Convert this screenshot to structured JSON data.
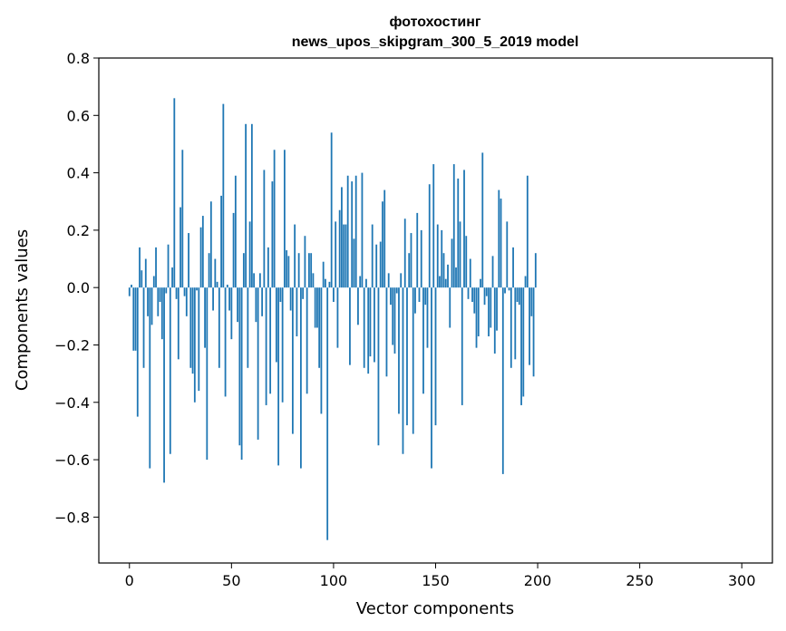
{
  "chart_data": {
    "type": "bar",
    "title_lines": [
      "фотохостинг",
      "news_upos_skipgram_300_5_2019 model"
    ],
    "xlabel": "Vector components",
    "ylabel": "Components values",
    "xlim": [
      -15,
      315
    ],
    "ylim": [
      -0.96,
      0.8
    ],
    "xticks": [
      0,
      50,
      100,
      150,
      200,
      250,
      300
    ],
    "yticks": [
      -0.8,
      -0.6,
      -0.4,
      -0.2,
      0.0,
      0.2,
      0.4,
      0.6,
      0.8
    ],
    "ytick_labels": [
      "−0.8",
      "−0.6",
      "−0.4",
      "−0.2",
      "0.0",
      "0.2",
      "0.4",
      "0.6",
      "0.8"
    ],
    "bar_color": "#1f77b4",
    "grid": false,
    "legend": "none",
    "x_start": 0,
    "values": [
      -0.03,
      0.01,
      -0.22,
      -0.22,
      -0.45,
      0.14,
      0.06,
      -0.28,
      0.1,
      -0.1,
      -0.63,
      -0.13,
      0.04,
      0.14,
      -0.1,
      -0.05,
      -0.18,
      -0.68,
      -0.02,
      0.15,
      -0.58,
      0.07,
      0.66,
      -0.04,
      -0.25,
      0.28,
      0.48,
      -0.03,
      -0.1,
      0.19,
      -0.28,
      -0.3,
      -0.4,
      -0.01,
      -0.36,
      0.21,
      0.25,
      -0.21,
      -0.6,
      0.12,
      0.3,
      -0.08,
      0.1,
      0.02,
      -0.28,
      0.32,
      0.64,
      -0.38,
      0.01,
      -0.08,
      -0.18,
      0.26,
      0.39,
      -0.12,
      -0.55,
      -0.6,
      0.12,
      0.57,
      -0.28,
      0.23,
      0.57,
      0.05,
      -0.12,
      -0.53,
      0.05,
      -0.1,
      0.41,
      -0.41,
      0.14,
      -0.37,
      0.37,
      0.48,
      -0.26,
      -0.62,
      -0.05,
      -0.4,
      0.48,
      0.13,
      0.11,
      -0.08,
      -0.51,
      0.22,
      -0.17,
      0.12,
      -0.63,
      -0.04,
      0.18,
      -0.37,
      0.12,
      0.12,
      0.05,
      -0.14,
      -0.14,
      -0.28,
      -0.44,
      0.09,
      0.03,
      -0.88,
      0.02,
      0.54,
      -0.05,
      0.23,
      -0.21,
      0.27,
      0.35,
      0.22,
      0.22,
      0.39,
      -0.27,
      0.37,
      0.17,
      0.39,
      -0.13,
      0.04,
      0.4,
      -0.28,
      0.03,
      -0.3,
      -0.24,
      0.22,
      -0.26,
      0.15,
      -0.55,
      0.16,
      0.3,
      0.34,
      -0.31,
      0.05,
      -0.06,
      -0.2,
      -0.23,
      -0.02,
      -0.44,
      0.05,
      -0.58,
      0.24,
      -0.48,
      0.12,
      0.19,
      -0.51,
      -0.09,
      0.26,
      -0.05,
      0.2,
      -0.37,
      -0.06,
      -0.21,
      0.36,
      -0.63,
      0.43,
      -0.48,
      0.22,
      0.04,
      0.2,
      0.12,
      0.03,
      0.08,
      -0.14,
      0.17,
      0.43,
      0.07,
      0.38,
      0.23,
      -0.41,
      0.41,
      0.18,
      -0.04,
      0.1,
      -0.05,
      -0.09,
      -0.21,
      -0.17,
      0.03,
      0.47,
      -0.06,
      -0.03,
      -0.17,
      -0.14,
      0.11,
      -0.23,
      -0.15,
      0.34,
      0.31,
      -0.65,
      -0.02,
      0.23,
      -0.01,
      -0.28,
      0.14,
      -0.25,
      -0.05,
      -0.06,
      -0.41,
      -0.38,
      0.04,
      0.39,
      -0.27,
      -0.1,
      -0.31,
      0.12
    ]
  }
}
